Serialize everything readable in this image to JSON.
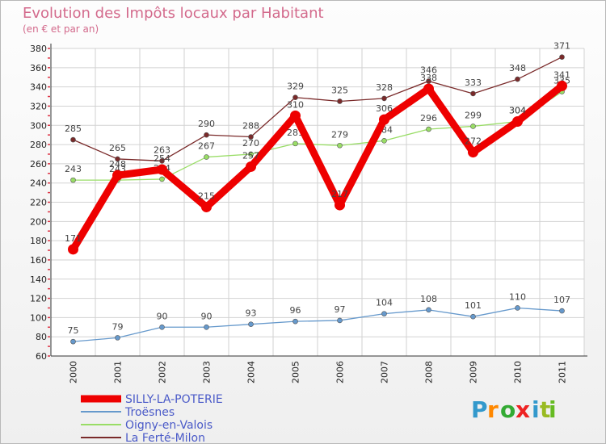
{
  "chart_data": {
    "type": "line",
    "title": "Evolution des Impôts locaux par Habitant",
    "subtitle": "(en € et par an)",
    "xlabel": "",
    "ylabel": "",
    "categories": [
      "2000",
      "2001",
      "2002",
      "2003",
      "2004",
      "2005",
      "2006",
      "2007",
      "2008",
      "2009",
      "2010",
      "2011"
    ],
    "ylim": [
      60,
      380
    ],
    "yticks": [
      60,
      80,
      100,
      120,
      140,
      160,
      180,
      200,
      220,
      240,
      260,
      280,
      300,
      320,
      340,
      360,
      380
    ],
    "grid": true,
    "legend_position": "bottom-left",
    "series": [
      {
        "name": "SILLY-LA-POTERIE",
        "color": "#ee0000",
        "values": [
          171,
          248,
          254,
          215,
          257,
          310,
          217,
          306,
          338,
          272,
          304,
          341
        ]
      },
      {
        "name": "Troësnes",
        "color": "#6699cc",
        "values": [
          75,
          79,
          90,
          90,
          93,
          96,
          97,
          104,
          108,
          101,
          110,
          107
        ]
      },
      {
        "name": "Oigny-en-Valois",
        "color": "#99dd66",
        "values": [
          243,
          243,
          244,
          267,
          270,
          281,
          279,
          284,
          296,
          299,
          304,
          335
        ]
      },
      {
        "name": "La Ferté-Milon",
        "color": "#7a2a2a",
        "values": [
          285,
          265,
          263,
          290,
          288,
          329,
          325,
          328,
          346,
          333,
          348,
          371
        ]
      }
    ]
  },
  "logo": {
    "letters": [
      "P",
      "r",
      "o",
      "x",
      "i",
      "t",
      "i"
    ],
    "colors": [
      "#3399cc",
      "#ff8800",
      "#33aa33",
      "#ee2222",
      "#3399cc",
      "#99bb22",
      "#66bb22"
    ]
  }
}
